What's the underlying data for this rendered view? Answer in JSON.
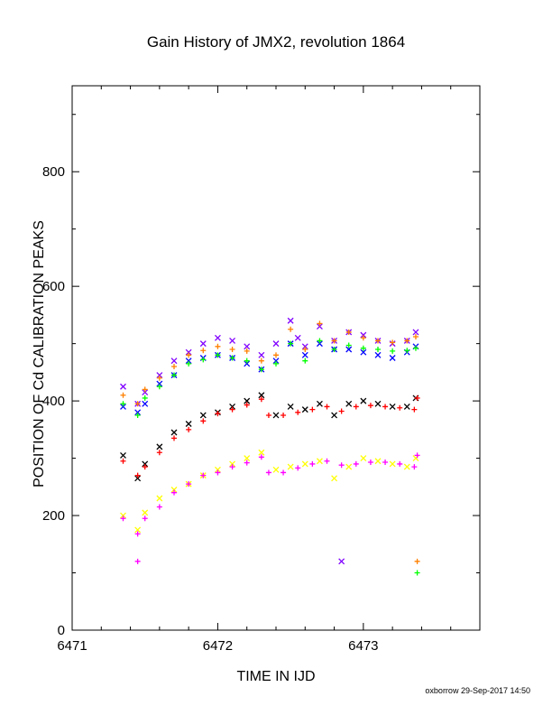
{
  "chart_data": {
    "type": "scatter",
    "title": "Gain History of JMX2, revolution 1864",
    "xlabel": "TIME IN IJD",
    "ylabel": "POSITION OF Cd CALIBRATION PEAKS",
    "xlim": [
      6471.0,
      6473.8
    ],
    "ylim": [
      0,
      950
    ],
    "x_ticks": [
      "6471",
      "6472",
      "6473"
    ],
    "y_ticks": [
      "0",
      "200",
      "400",
      "600",
      "800"
    ],
    "grid": false,
    "legend": "none",
    "series": [
      {
        "color": "#8000ff",
        "marker": "x",
        "points": [
          [
            6471.35,
            425
          ],
          [
            6471.45,
            395
          ],
          [
            6471.5,
            415
          ],
          [
            6471.6,
            445
          ],
          [
            6471.7,
            470
          ],
          [
            6471.8,
            485
          ],
          [
            6471.9,
            500
          ],
          [
            6472.0,
            510
          ],
          [
            6472.1,
            505
          ],
          [
            6472.2,
            495
          ],
          [
            6472.3,
            480
          ],
          [
            6472.4,
            500
          ],
          [
            6472.5,
            540
          ],
          [
            6472.55,
            510
          ],
          [
            6472.6,
            495
          ],
          [
            6472.7,
            530
          ],
          [
            6472.8,
            505
          ],
          [
            6472.9,
            520
          ],
          [
            6473.0,
            515
          ],
          [
            6473.1,
            505
          ],
          [
            6473.2,
            500
          ],
          [
            6473.3,
            505
          ],
          [
            6473.36,
            520
          ],
          [
            6472.85,
            120
          ]
        ]
      },
      {
        "color": "#0000ff",
        "marker": "x",
        "points": [
          [
            6471.35,
            390
          ],
          [
            6471.45,
            380
          ],
          [
            6471.5,
            395
          ],
          [
            6471.6,
            430
          ],
          [
            6471.7,
            445
          ],
          [
            6471.8,
            470
          ],
          [
            6471.9,
            475
          ],
          [
            6472.0,
            480
          ],
          [
            6472.1,
            475
          ],
          [
            6472.2,
            465
          ],
          [
            6472.3,
            455
          ],
          [
            6472.4,
            470
          ],
          [
            6472.5,
            500
          ],
          [
            6472.6,
            480
          ],
          [
            6472.7,
            500
          ],
          [
            6472.8,
            490
          ],
          [
            6472.9,
            490
          ],
          [
            6473.0,
            485
          ],
          [
            6473.1,
            480
          ],
          [
            6473.2,
            475
          ],
          [
            6473.3,
            485
          ],
          [
            6473.36,
            495
          ]
        ]
      },
      {
        "color": "#ff8000",
        "marker": "+",
        "points": [
          [
            6471.35,
            410
          ],
          [
            6471.45,
            395
          ],
          [
            6471.5,
            420
          ],
          [
            6471.6,
            440
          ],
          [
            6471.7,
            460
          ],
          [
            6471.8,
            480
          ],
          [
            6471.9,
            488
          ],
          [
            6472.0,
            495
          ],
          [
            6472.1,
            490
          ],
          [
            6472.2,
            487
          ],
          [
            6472.3,
            470
          ],
          [
            6472.4,
            480
          ],
          [
            6472.5,
            525
          ],
          [
            6472.6,
            490
          ],
          [
            6472.7,
            535
          ],
          [
            6472.8,
            505
          ],
          [
            6472.9,
            520
          ],
          [
            6473.0,
            510
          ],
          [
            6473.1,
            505
          ],
          [
            6473.2,
            502
          ],
          [
            6473.3,
            505
          ],
          [
            6473.36,
            512
          ],
          [
            6473.37,
            120
          ]
        ]
      },
      {
        "color": "#00ff00",
        "marker": "+",
        "points": [
          [
            6471.35,
            395
          ],
          [
            6471.45,
            375
          ],
          [
            6471.5,
            405
          ],
          [
            6471.6,
            425
          ],
          [
            6471.7,
            445
          ],
          [
            6471.8,
            465
          ],
          [
            6471.9,
            472
          ],
          [
            6472.0,
            480
          ],
          [
            6472.1,
            475
          ],
          [
            6472.2,
            470
          ],
          [
            6472.3,
            455
          ],
          [
            6472.4,
            465
          ],
          [
            6472.5,
            500
          ],
          [
            6472.6,
            470
          ],
          [
            6472.7,
            505
          ],
          [
            6472.8,
            490
          ],
          [
            6472.9,
            497
          ],
          [
            6473.0,
            492
          ],
          [
            6473.1,
            490
          ],
          [
            6473.2,
            487
          ],
          [
            6473.3,
            488
          ],
          [
            6473.36,
            492
          ],
          [
            6473.37,
            100
          ]
        ]
      },
      {
        "color": "#000000",
        "marker": "x",
        "points": [
          [
            6471.35,
            305
          ],
          [
            6471.45,
            265
          ],
          [
            6471.5,
            290
          ],
          [
            6471.6,
            320
          ],
          [
            6471.7,
            345
          ],
          [
            6471.8,
            360
          ],
          [
            6471.9,
            375
          ],
          [
            6472.0,
            380
          ],
          [
            6472.1,
            390
          ],
          [
            6472.2,
            400
          ],
          [
            6472.3,
            410
          ],
          [
            6472.4,
            375
          ],
          [
            6472.5,
            390
          ],
          [
            6472.6,
            385
          ],
          [
            6472.7,
            395
          ],
          [
            6472.8,
            375
          ],
          [
            6472.9,
            395
          ],
          [
            6473.0,
            400
          ],
          [
            6473.1,
            395
          ],
          [
            6473.2,
            390
          ],
          [
            6473.3,
            390
          ],
          [
            6473.36,
            405
          ]
        ]
      },
      {
        "color": "#ff0000",
        "marker": "+",
        "points": [
          [
            6471.35,
            295
          ],
          [
            6471.45,
            270
          ],
          [
            6471.5,
            285
          ],
          [
            6471.6,
            310
          ],
          [
            6471.7,
            335
          ],
          [
            6471.8,
            350
          ],
          [
            6471.9,
            365
          ],
          [
            6472.0,
            378
          ],
          [
            6472.1,
            385
          ],
          [
            6472.2,
            393
          ],
          [
            6472.3,
            403
          ],
          [
            6472.35,
            375
          ],
          [
            6472.45,
            375
          ],
          [
            6472.55,
            380
          ],
          [
            6472.65,
            385
          ],
          [
            6472.75,
            390
          ],
          [
            6472.85,
            382
          ],
          [
            6472.95,
            390
          ],
          [
            6473.05,
            392
          ],
          [
            6473.15,
            390
          ],
          [
            6473.25,
            388
          ],
          [
            6473.35,
            385
          ],
          [
            6473.37,
            405
          ]
        ]
      },
      {
        "color": "#ffff00",
        "marker": "x",
        "points": [
          [
            6471.35,
            200
          ],
          [
            6471.45,
            175
          ],
          [
            6471.5,
            205
          ],
          [
            6471.6,
            230
          ],
          [
            6471.7,
            245
          ],
          [
            6471.8,
            255
          ],
          [
            6471.9,
            270
          ],
          [
            6472.0,
            280
          ],
          [
            6472.1,
            290
          ],
          [
            6472.2,
            300
          ],
          [
            6472.3,
            310
          ],
          [
            6472.4,
            280
          ],
          [
            6472.5,
            285
          ],
          [
            6472.6,
            290
          ],
          [
            6472.7,
            295
          ],
          [
            6472.8,
            265
          ],
          [
            6472.9,
            285
          ],
          [
            6473.0,
            300
          ],
          [
            6473.1,
            295
          ],
          [
            6473.2,
            290
          ],
          [
            6473.3,
            285
          ],
          [
            6473.36,
            300
          ]
        ]
      },
      {
        "color": "#ff00ff",
        "marker": "+",
        "points": [
          [
            6471.35,
            195
          ],
          [
            6471.45,
            168
          ],
          [
            6471.5,
            195
          ],
          [
            6471.6,
            215
          ],
          [
            6471.7,
            240
          ],
          [
            6471.8,
            255
          ],
          [
            6471.9,
            270
          ],
          [
            6472.0,
            275
          ],
          [
            6472.1,
            285
          ],
          [
            6472.2,
            292
          ],
          [
            6472.3,
            302
          ],
          [
            6472.35,
            275
          ],
          [
            6472.45,
            275
          ],
          [
            6472.55,
            283
          ],
          [
            6472.65,
            290
          ],
          [
            6472.75,
            295
          ],
          [
            6472.85,
            288
          ],
          [
            6472.95,
            290
          ],
          [
            6473.05,
            293
          ],
          [
            6473.15,
            293
          ],
          [
            6473.25,
            290
          ],
          [
            6473.35,
            285
          ],
          [
            6473.37,
            305
          ],
          [
            6471.45,
            120
          ]
        ]
      }
    ]
  },
  "footer": "oxborrow 29-Sep-2017 14:50"
}
